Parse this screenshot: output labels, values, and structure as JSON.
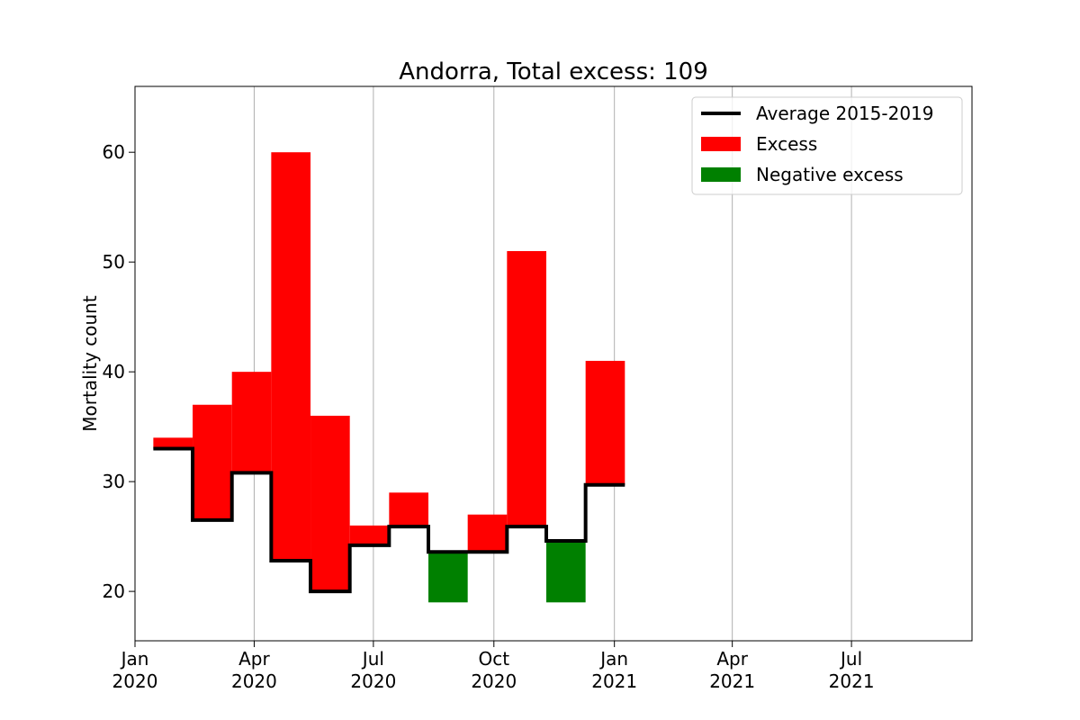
{
  "chart_data": {
    "type": "bar",
    "title": "Andorra, Total excess: 109",
    "xlabel": "",
    "ylabel": "Mortality count",
    "xlim": [
      "2020-01-01",
      "2021-10-01"
    ],
    "ylim": [
      15.5,
      66
    ],
    "grid": {
      "x": true,
      "y": false
    },
    "legend_position": "top-right",
    "x_ticks": [
      {
        "date": "2020-01-01",
        "label": [
          "Jan",
          "2020"
        ]
      },
      {
        "date": "2020-04-01",
        "label": [
          "Apr",
          "2020"
        ]
      },
      {
        "date": "2020-07-01",
        "label": [
          "Jul",
          "2020"
        ]
      },
      {
        "date": "2020-10-01",
        "label": [
          "Oct",
          "2020"
        ]
      },
      {
        "date": "2021-01-01",
        "label": [
          "Jan",
          "2021"
        ]
      },
      {
        "date": "2021-04-01",
        "label": [
          "Apr",
          "2021"
        ]
      },
      {
        "date": "2021-07-01",
        "label": [
          "Jul",
          "2021"
        ]
      }
    ],
    "y_ticks": [
      20,
      30,
      40,
      50,
      60
    ],
    "periods": [
      {
        "start": "2020-01-15",
        "end": "2020-02-14",
        "average": 33,
        "actual": 34
      },
      {
        "start": "2020-02-14",
        "end": "2020-03-15",
        "average": 26.5,
        "actual": 37
      },
      {
        "start": "2020-03-15",
        "end": "2020-04-14",
        "average": 30.8,
        "actual": 40
      },
      {
        "start": "2020-04-14",
        "end": "2020-05-14",
        "average": 22.8,
        "actual": 60
      },
      {
        "start": "2020-05-14",
        "end": "2020-06-13",
        "average": 20,
        "actual": 36
      },
      {
        "start": "2020-06-13",
        "end": "2020-07-13",
        "average": 24.2,
        "actual": 26
      },
      {
        "start": "2020-07-13",
        "end": "2020-08-12",
        "average": 25.9,
        "actual": 29
      },
      {
        "start": "2020-08-12",
        "end": "2020-09-11",
        "average": 23.6,
        "actual": 19
      },
      {
        "start": "2020-09-11",
        "end": "2020-10-11",
        "average": 23.6,
        "actual": 27
      },
      {
        "start": "2020-10-11",
        "end": "2020-11-10",
        "average": 25.9,
        "actual": 51
      },
      {
        "start": "2020-11-10",
        "end": "2020-12-10",
        "average": 24.6,
        "actual": 19
      },
      {
        "start": "2020-12-10",
        "end": "2021-01-09",
        "average": 29.7,
        "actual": 41
      }
    ],
    "legend": [
      {
        "label": "Average 2015-2019",
        "kind": "line",
        "color": "#000000"
      },
      {
        "label": "Excess",
        "kind": "patch",
        "color": "#ff0000"
      },
      {
        "label": "Negative excess",
        "kind": "patch",
        "color": "#008000"
      }
    ]
  }
}
